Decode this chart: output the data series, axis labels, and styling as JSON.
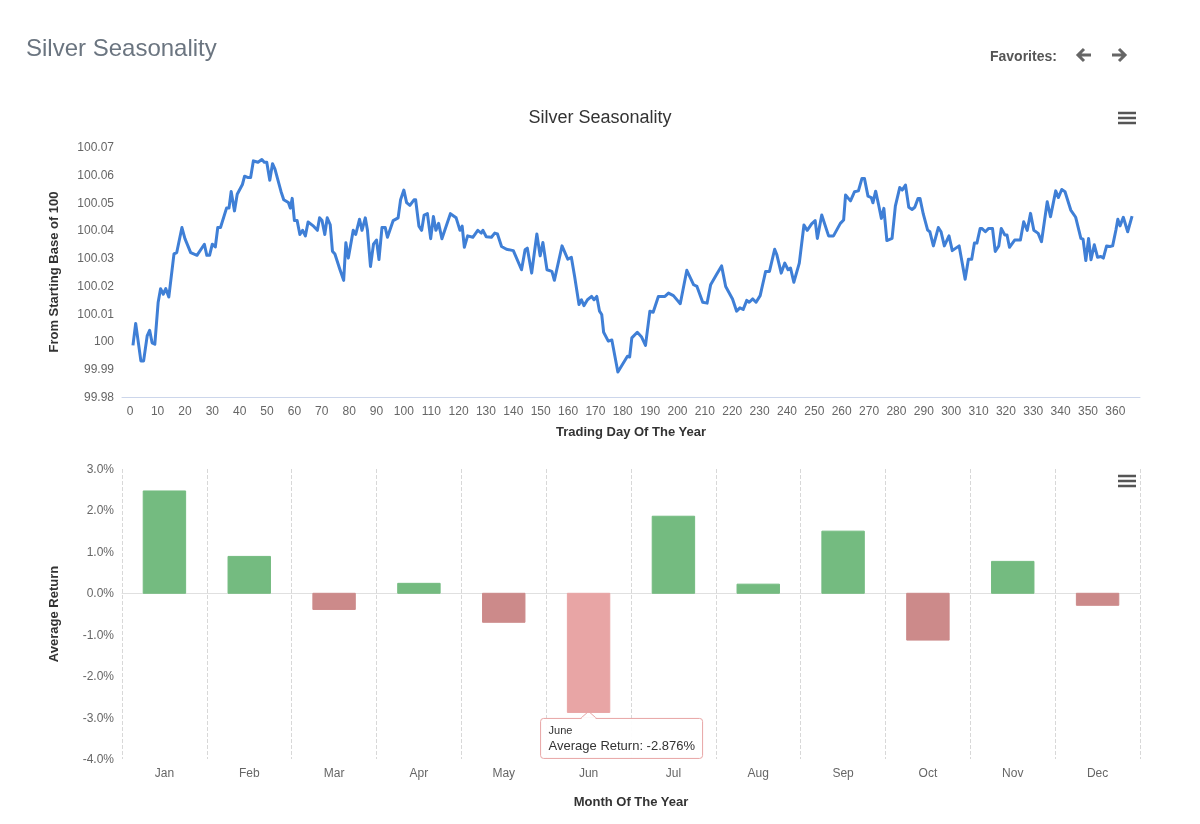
{
  "chart_data": [
    {
      "type": "line",
      "title": "Silver Seasonality",
      "xlabel": "Trading Day Of The Year",
      "ylabel": "From Starting Base of 100",
      "annotations": [
        "Silver Seasonality",
        "Favorites:"
      ],
      "xlim": [
        -3,
        369
      ],
      "xticks": [
        0,
        10,
        20,
        30,
        40,
        50,
        60,
        70,
        80,
        90,
        100,
        110,
        120,
        130,
        140,
        150,
        160,
        170,
        180,
        190,
        200,
        210,
        220,
        230,
        240,
        250,
        260,
        270,
        280,
        290,
        300,
        310,
        320,
        330,
        340,
        350,
        360
      ],
      "ylim": [
        99.98,
        100.07
      ],
      "yticks": [
        99.98,
        99.99,
        100,
        100.01,
        100.02,
        100.03,
        100.04,
        100.05,
        100.06,
        100.07
      ],
      "grid": false,
      "series": [
        {
          "color": "#3f7fd6",
          "x": [
            1.0,
            2.0,
            3.9,
            4.9,
            6.2,
            7.1,
            8.0,
            9.0,
            10.2,
            11.1,
            12.1,
            13.0,
            14.1,
            16.0,
            17.0,
            18.9,
            20.0,
            22.1,
            24.4,
            27.1,
            28.0,
            29.0,
            30.0,
            31.1,
            32.0,
            33.0,
            35.2,
            36.1,
            36.9,
            38.1,
            39.1,
            41.0,
            41.8,
            43.1,
            44.0,
            45.0,
            46.7,
            48.1,
            49.0,
            49.9,
            51.0,
            52.0,
            52.9,
            55.1,
            56.1,
            57.8,
            58.5,
            59.2,
            60.0,
            61.0,
            62.0,
            63.0,
            64.0,
            65.0,
            67.0,
            68.4,
            69.2,
            70.1,
            71.1,
            72.0,
            73.1,
            73.9,
            74.8,
            76.6,
            78.0,
            78.8,
            79.7,
            81.5,
            82.4,
            83.8,
            84.7,
            85.9,
            86.7,
            87.8,
            88.9,
            90.0,
            90.9,
            92.0,
            93.2,
            94.0,
            96.1,
            97.9,
            98.8,
            100.0,
            101.0,
            102.2,
            103.7,
            104.3,
            105.5,
            106.5,
            107.4,
            108.6,
            109.8,
            110.8,
            111.7,
            112.7,
            113.9,
            117.0,
            119.1,
            120.5,
            121.3,
            122.1,
            123.3,
            125.2,
            127.0,
            128.3,
            128.9,
            130.1,
            132.0,
            133.2,
            134.2,
            135.7,
            137.5,
            140.0,
            143.0,
            144.3,
            145.1,
            146.7,
            148.6,
            149.8,
            150.8,
            152.3,
            154.1,
            155.0,
            157.8,
            159.9,
            161.2,
            162.4,
            164.0,
            164.9,
            165.8,
            167.1,
            168.6,
            169.5,
            170.5,
            171.5,
            172.3,
            173.0,
            174.7,
            176.0,
            178.2,
            181.7,
            182.5,
            183.3,
            185.3,
            186.8,
            188.3,
            189.9,
            191.1,
            193.0,
            195.4,
            196.7,
            198.5,
            201.0,
            203.4,
            205.9,
            207.1,
            209.2,
            210.8,
            212.1,
            214.2,
            216.1,
            217.6,
            220.1,
            221.6,
            222.8,
            224.0,
            225.3,
            226.2,
            227.5,
            228.7,
            230.2,
            232.2,
            233.6,
            235.5,
            236.3,
            237.9,
            239.2,
            240.4,
            241.3,
            242.5,
            244.5,
            246.2,
            247.4,
            249.0,
            250.3,
            251.1,
            252.7,
            255.2,
            257.0,
            259.5,
            260.7,
            261.4,
            263.2,
            264.7,
            266.1,
            267.4,
            268.3,
            269.6,
            270.8,
            271.4,
            272.4,
            273.5,
            274.5,
            275.4,
            276.5,
            278.4,
            279.6,
            281.2,
            282.1,
            283.3,
            284.5,
            285.7,
            286.7,
            287.9,
            288.6,
            289.8,
            291.4,
            292.2,
            293.5,
            295.3,
            296.3,
            297.5,
            299.2,
            300.4,
            301.7,
            302.9,
            305.1,
            306.3,
            307.5,
            308.5,
            309.4,
            310.6,
            311.2,
            312.5,
            313.7,
            315.1,
            316.1,
            317.4,
            318.3,
            319.6,
            320.4,
            321.3,
            323.2,
            325.3,
            326.5,
            327.8,
            329.0,
            330.2,
            331.8,
            333.0,
            335.1,
            336.3,
            338.2,
            339.2,
            340.4,
            341.6,
            343.7,
            345.5,
            347.4,
            348.2,
            349.2,
            350.2,
            351.1,
            352.3,
            353.5,
            354.7,
            355.6,
            356.8,
            358.0,
            359.0,
            360.2,
            360.9,
            361.7,
            362.9,
            364.5,
            366.1
          ],
          "values": [
            99.9986,
            100.0065,
            99.993,
            99.993,
            100.002,
            100.004,
            99.9995,
            99.999,
            100.014,
            100.019,
            100.017,
            100.019,
            100.016,
            100.0315,
            100.032,
            100.041,
            100.037,
            100.032,
            100.031,
            100.035,
            100.031,
            100.031,
            100.035,
            100.034,
            100.041,
            100.041,
            100.048,
            100.048,
            100.054,
            100.047,
            100.053,
            100.0565,
            100.0595,
            100.059,
            100.059,
            100.065,
            100.0645,
            100.0655,
            100.0645,
            100.0645,
            100.058,
            100.064,
            100.062,
            100.054,
            100.051,
            100.05,
            100.048,
            100.0515,
            100.0435,
            100.0435,
            100.0385,
            100.04,
            100.038,
            100.043,
            100.0415,
            100.04,
            100.0445,
            100.0435,
            100.0385,
            100.0445,
            100.042,
            100.0325,
            100.0315,
            100.026,
            100.022,
            100.0355,
            100.03,
            100.04,
            100.0385,
            100.044,
            100.04,
            100.0445,
            100.04,
            100.027,
            100.035,
            100.0365,
            100.0295,
            100.041,
            100.041,
            100.0375,
            100.0435,
            100.0445,
            100.051,
            100.0545,
            100.05,
            100.049,
            100.051,
            100.051,
            100.0415,
            100.04,
            100.0455,
            100.046,
            100.037,
            100.045,
            100.04,
            100.0425,
            100.037,
            100.046,
            100.0445,
            100.04,
            100.0415,
            100.0339,
            100.038,
            100.0375,
            100.04,
            100.039,
            100.04,
            100.0377,
            100.0375,
            100.039,
            100.0387,
            100.0342,
            100.0332,
            100.0327,
            100.0258,
            100.033,
            100.0336,
            100.0246,
            100.0387,
            100.0308,
            100.0356,
            100.0258,
            100.0252,
            100.022,
            100.0344,
            100.0296,
            100.0303,
            100.0234,
            100.0133,
            100.015,
            100.0129,
            100.015,
            100.0162,
            100.015,
            100.0162,
            100.0109,
            100.0097,
            100.0033,
            100.0001,
            100.0005,
            99.989,
            99.9947,
            99.9944,
            100.0013,
            100.0033,
            100.0017,
            99.9986,
            100.0109,
            100.0105,
            100.0162,
            100.0162,
            100.0174,
            100.0165,
            100.0136,
            100.0256,
            100.0204,
            100.0198,
            100.0141,
            100.0138,
            100.0204,
            100.024,
            100.0272,
            100.0198,
            100.0153,
            100.0109,
            100.0121,
            100.0115,
            100.0148,
            100.0141,
            100.0153,
            100.0141,
            100.0165,
            100.0252,
            100.0252,
            100.0332,
            100.0312,
            100.0246,
            100.0282,
            100.0258,
            100.0264,
            100.0213,
            100.0282,
            100.0419,
            100.04,
            100.0423,
            100.0435,
            100.0371,
            100.0455,
            100.038,
            100.038,
            100.0425,
            100.0437,
            100.0527,
            100.0506,
            100.0539,
            100.0542,
            100.0587,
            100.0587,
            100.0523,
            100.0518,
            100.0499,
            100.0541,
            100.0491,
            100.0443,
            100.0479,
            100.0363,
            100.0371,
            100.0487,
            100.0554,
            100.0545,
            100.0563,
            100.0483,
            100.0475,
            100.0483,
            100.0515,
            100.0515,
            100.0459,
            100.0401,
            100.0395,
            100.0344,
            100.041,
            100.0395,
            100.0344,
            100.038,
            100.0327,
            100.0336,
            100.0344,
            100.0224,
            100.0296,
            100.0296,
            100.0354,
            100.0354,
            100.0407,
            100.0407,
            100.0395,
            100.0407,
            100.0407,
            100.0324,
            100.0344,
            100.0407,
            100.0383,
            100.0383,
            100.0339,
            100.0365,
            100.0365,
            100.0431,
            100.04,
            100.0461,
            100.04,
            100.0389,
            100.0359,
            100.0503,
            100.0449,
            100.0542,
            100.0518,
            100.0547,
            100.0539,
            100.0473,
            100.0447,
            100.0371,
            100.0368,
            100.0291,
            100.0371,
            100.0294,
            100.0348,
            100.0303,
            100.0306,
            100.03,
            100.0344,
            100.0342,
            100.0344,
            100.0401,
            100.044,
            100.0416,
            100.0447,
            100.0395,
            100.0451
          ]
        }
      ]
    },
    {
      "type": "bar",
      "xlabel": "Month Of The Year",
      "ylabel": "Average Return",
      "categories": [
        "Jan",
        "Feb",
        "Mar",
        "Apr",
        "May",
        "Jun",
        "Jul",
        "Aug",
        "Sep",
        "Oct",
        "Nov",
        "Dec"
      ],
      "values": [
        2.47,
        0.89,
        -0.39,
        0.24,
        -0.7,
        -2.876,
        1.86,
        0.22,
        1.5,
        -1.13,
        0.77,
        -0.29
      ],
      "colors": [
        "#74bb80",
        "#74bb80",
        "#cc8a8a",
        "#74bb80",
        "#cc8a8a",
        "#e8a5a5",
        "#74bb80",
        "#74bb80",
        "#74bb80",
        "#cc8a8a",
        "#74bb80",
        "#cc8a8a"
      ],
      "ylim": [
        -4,
        3
      ],
      "yticks": [
        {
          "value": -4,
          "label": "-4.0%"
        },
        {
          "value": -3,
          "label": "-3.0%"
        },
        {
          "value": -2,
          "label": "-2.0%"
        },
        {
          "value": -1,
          "label": "-1.0%"
        },
        {
          "value": 0,
          "label": "0.0%"
        },
        {
          "value": 1,
          "label": "1.0%"
        },
        {
          "value": 2,
          "label": "2.0%"
        },
        {
          "value": 3,
          "label": "3.0%"
        }
      ],
      "grid": "x",
      "annotations": [
        {
          "text": "June\nAverage Return: -2.876%",
          "x": "Jun",
          "y": -2.876
        }
      ]
    }
  ]
}
